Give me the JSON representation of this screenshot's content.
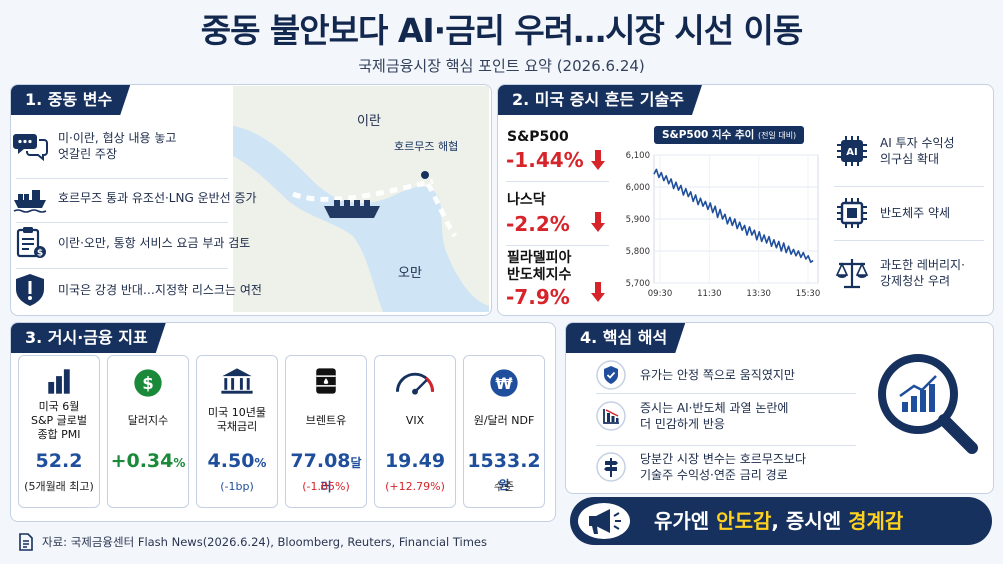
{
  "header": {
    "title": "중동 불안보다 AI·금리 우려…시장 시선 이동",
    "subtitle": "국제금융시장 핵심 포인트 요약 (2026.6.24)"
  },
  "panel1": {
    "title": "1. 중동 변수",
    "items": [
      {
        "icon": "speech-bubbles-icon",
        "text1": "미·이란, 협상 내용 놓고",
        "text2": "엇갈린 주장"
      },
      {
        "icon": "tanker-ship-icon",
        "text1": "호르무즈 통과 유조선·LNG 운반선 증가",
        "text2": ""
      },
      {
        "icon": "clipboard-fee-icon",
        "text1": "이란·오만, 통항 서비스 요금 부과 검토",
        "text2": ""
      },
      {
        "icon": "shield-warning-icon",
        "text1": "미국은 강경 반대…지정학 리스크는 여전",
        "text2": ""
      }
    ],
    "map": {
      "label_iran": "이란",
      "label_strait": "호르무즈 해협",
      "label_oman": "오만"
    }
  },
  "panel2": {
    "title": "2. 미국 증시 흔든 기술주",
    "indices": [
      {
        "name": "S&P500",
        "name2": "",
        "change": "-1.44%"
      },
      {
        "name": "나스닥",
        "name2": "",
        "change": "-2.2%"
      },
      {
        "name": "필라델피아",
        "name2": "반도체지수",
        "change": "-7.9%"
      }
    ],
    "chart_title": "S&P500 지수 추이",
    "chart_title_note": "(전일 대비)",
    "reasons": [
      {
        "icon": "ai-chip-icon",
        "text1": "AI 투자 수익성",
        "text2": "의구심 확대"
      },
      {
        "icon": "semiconductor-icon",
        "text1": "반도체주 약세",
        "text2": ""
      },
      {
        "icon": "balance-scale-icon",
        "text1": "과도한 레버리지·",
        "text2": "강제청산 우려"
      }
    ]
  },
  "chart_data": {
    "type": "line",
    "title": "S&P500 지수 추이 (전일 대비)",
    "xlabel": "",
    "ylabel": "",
    "x_ticks": [
      "09:30",
      "11:30",
      "13:30",
      "15:30"
    ],
    "y_ticks": [
      "6,100",
      "6,000",
      "5,900",
      "5,800",
      "5,700"
    ],
    "ylim": [
      5700,
      6100
    ],
    "xlim": [
      0,
      6.7
    ],
    "grid": true,
    "series": [
      {
        "x": [
          0,
          0.1,
          0.2,
          0.3,
          0.4,
          0.5,
          0.6,
          0.7,
          0.8,
          0.9,
          1.0,
          1.1,
          1.2,
          1.3,
          1.4,
          1.5,
          1.6,
          1.7,
          1.8,
          1.9,
          2.0,
          2.1,
          2.2,
          2.3,
          2.4,
          2.5,
          2.6,
          2.7,
          2.8,
          2.9,
          3.0,
          3.1,
          3.2,
          3.3,
          3.4,
          3.5,
          3.6,
          3.7,
          3.8,
          3.9,
          4.0,
          4.1,
          4.2,
          4.3,
          4.4,
          4.5,
          4.6,
          4.7,
          4.8,
          4.9,
          5.0,
          5.1,
          5.2,
          5.3,
          5.4,
          5.5,
          5.6,
          5.7,
          5.8,
          5.9,
          6.0,
          6.1,
          6.2,
          6.3,
          6.4,
          6.5
        ],
        "values": [
          6040,
          6055,
          6030,
          6045,
          6020,
          6035,
          6010,
          6025,
          5995,
          6015,
          5990,
          6005,
          5975,
          5995,
          5970,
          5985,
          5955,
          5975,
          5945,
          5965,
          5940,
          5955,
          5930,
          5950,
          5920,
          5940,
          5905,
          5930,
          5900,
          5915,
          5885,
          5905,
          5880,
          5900,
          5870,
          5890,
          5865,
          5880,
          5850,
          5875,
          5850,
          5865,
          5835,
          5860,
          5830,
          5850,
          5825,
          5845,
          5815,
          5835,
          5810,
          5830,
          5800,
          5825,
          5795,
          5815,
          5790,
          5805,
          5785,
          5800,
          5780,
          5795,
          5775,
          5785,
          5765,
          5770
        ]
      }
    ]
  },
  "panel3": {
    "title": "3. 거시·금융 지표",
    "cards": [
      {
        "icon": "bar-chart-icon",
        "name1": "미국 6월",
        "name2": "S&P 글로벌",
        "name3": "종합 PMI",
        "value": "52.2",
        "unit": "",
        "sub": "(5개월래 최고)",
        "value_color": "#1f4f9c",
        "sub_color": "#222222"
      },
      {
        "icon": "dollar-icon",
        "name1": "달러지수",
        "name2": "",
        "name3": "",
        "value": "+0.34",
        "unit": "%",
        "sub": "",
        "value_color": "#1a8a3a",
        "sub_color": "#222222"
      },
      {
        "icon": "bank-icon",
        "name1": "미국 10년물",
        "name2": "국채금리",
        "name3": "",
        "value": "4.50",
        "unit": "%",
        "sub": "(-1bp)",
        "value_color": "#1f4f9c",
        "sub_color": "#1f4f9c"
      },
      {
        "icon": "oil-barrel-icon",
        "name1": "브렌트유",
        "name2": "",
        "name3": "",
        "value": "77.08",
        "unit": "달러",
        "sub": "(-1.05%)",
        "value_color": "#1f4f9c",
        "sub_color": "#d7242a"
      },
      {
        "icon": "gauge-icon",
        "name1": "VIX",
        "name2": "",
        "name3": "",
        "value": "19.49",
        "unit": "",
        "sub": "(+12.79%)",
        "value_color": "#1f4f9c",
        "sub_color": "#d7242a"
      },
      {
        "icon": "won-icon",
        "name1": "원/달러 NDF",
        "name2": "",
        "name3": "",
        "value": "1533.2",
        "unit": "원",
        "sub": "수준",
        "value_color": "#1f4f9c",
        "sub_color": "#222222"
      }
    ]
  },
  "panel4": {
    "title": "4. 핵심 해석",
    "items": [
      {
        "icon": "shield-check-icon",
        "text1": "유가는 안정 쪽으로 움직였지만",
        "text2": ""
      },
      {
        "icon": "chart-decline-icon",
        "text1": "증시는 AI·반도체 과열 논란에",
        "text2": "더 민감하게 반응"
      },
      {
        "icon": "signpost-icon",
        "text1": "당분간 시장 변수는 호르무즈보다",
        "text2": "기술주 수익성·연준 금리 경로"
      }
    ],
    "banner_a": "유가엔 ",
    "banner_b": "안도감",
    "banner_c": ", 증시엔 ",
    "banner_d": "경계감"
  },
  "source": "자료: 국제금융센터 Flash News(2026.6.24), Bloomberg, Reuters, Financial Times",
  "colors": {
    "navy": "#17315e",
    "red": "#d7242a",
    "green": "#1a8a3a",
    "blue": "#1f4f9c",
    "yellow": "#ffd21f"
  }
}
